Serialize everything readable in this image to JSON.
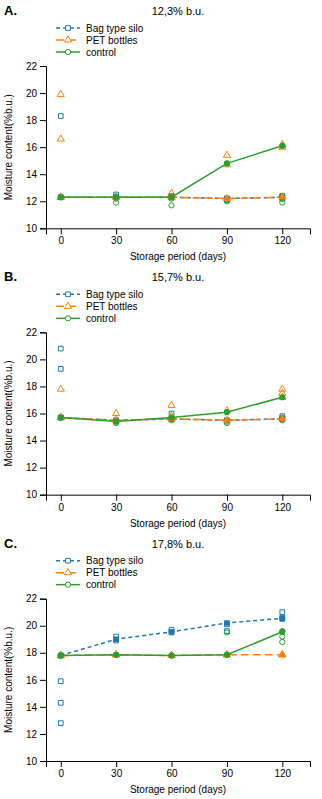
{
  "chart_data": [
    {
      "type": "line",
      "title": "12,3% b.u.",
      "annotations": [
        "A."
      ],
      "xlabel": "Storage period (days)",
      "ylabel": "Moisture content(%b.u.)",
      "x": [
        0,
        30,
        60,
        90,
        120
      ],
      "xlim": [
        -8,
        135
      ],
      "xticks": [
        0,
        30,
        60,
        90,
        120
      ],
      "ylim": [
        10,
        22
      ],
      "yticks": [
        10,
        12,
        14,
        16,
        18,
        20,
        22
      ],
      "grid": false,
      "legend": "top",
      "series": [
        {
          "name": "Bag type silo",
          "marker": "square",
          "line_style": "dashed",
          "values": [
            12.3,
            12.3,
            12.3,
            12.2,
            12.3
          ],
          "replicate_x": [
            0,
            0,
            30,
            30,
            60,
            60,
            90,
            90,
            120,
            120
          ],
          "replicate_values": [
            12.3,
            18.3,
            12.3,
            12.5,
            12.3,
            12.4,
            12.1,
            12.2,
            12.2,
            12.4
          ]
        },
        {
          "name": "PET bottles",
          "marker": "triangle",
          "line_style": "longdash",
          "values": [
            12.3,
            12.3,
            12.3,
            12.2,
            12.3
          ],
          "replicate_x": [
            0,
            0,
            0,
            30,
            60,
            60,
            90,
            90,
            120,
            120,
            120
          ],
          "replicate_values": [
            12.3,
            19.9,
            16.6,
            12.3,
            12.3,
            12.6,
            14.7,
            15.4,
            16.0,
            16.2,
            16.1
          ]
        },
        {
          "name": "control",
          "marker": "circle",
          "line_style": "solid",
          "values": [
            12.3,
            12.3,
            12.3,
            14.8,
            16.1
          ],
          "replicate_x": [
            0,
            30,
            30,
            60,
            60,
            90,
            90,
            120,
            120,
            120
          ],
          "replicate_values": [
            12.3,
            12.2,
            11.9,
            12.2,
            11.7,
            12.0,
            12.1,
            12.2,
            11.9,
            12.4
          ]
        }
      ]
    },
    {
      "type": "line",
      "title": "15,7% b.u.",
      "annotations": [
        "B."
      ],
      "xlabel": "Storage period (days)",
      "ylabel": "Moisture content(%b.u.)",
      "x": [
        0,
        30,
        60,
        90,
        120
      ],
      "xlim": [
        -8,
        135
      ],
      "xticks": [
        0,
        30,
        60,
        90,
        120
      ],
      "ylim": [
        10,
        22
      ],
      "yticks": [
        10,
        12,
        14,
        16,
        18,
        20,
        22
      ],
      "grid": false,
      "legend": "top",
      "series": [
        {
          "name": "Bag type silo",
          "marker": "square",
          "line_style": "dashed",
          "values": [
            15.7,
            15.5,
            15.6,
            15.5,
            15.6
          ],
          "replicate_x": [
            0,
            0,
            0,
            30,
            60,
            60,
            90,
            120,
            120
          ],
          "replicate_values": [
            15.7,
            20.8,
            19.3,
            15.4,
            15.6,
            16.0,
            15.4,
            15.6,
            15.8
          ]
        },
        {
          "name": "PET bottles",
          "marker": "triangle",
          "line_style": "longdash",
          "values": [
            15.7,
            15.5,
            15.6,
            15.5,
            15.6
          ],
          "replicate_x": [
            0,
            0,
            30,
            60,
            60,
            90,
            120,
            120,
            120
          ],
          "replicate_values": [
            15.7,
            17.8,
            16.0,
            16.6,
            15.8,
            16.2,
            17.2,
            17.5,
            17.8
          ]
        },
        {
          "name": "control",
          "marker": "circle",
          "line_style": "solid",
          "values": [
            15.7,
            15.4,
            15.7,
            16.1,
            17.2
          ],
          "replicate_x": [
            0,
            30,
            30,
            60,
            60,
            90,
            90,
            120,
            120
          ],
          "replicate_values": [
            15.7,
            15.3,
            15.5,
            15.5,
            15.6,
            15.3,
            15.5,
            15.5,
            15.7
          ]
        }
      ]
    },
    {
      "type": "line",
      "title": "17,8% b.u.",
      "annotations": [
        "C."
      ],
      "xlabel": "Storage period (days)",
      "ylabel": "Moisture content(%b.u.)",
      "x": [
        0,
        30,
        60,
        90,
        120
      ],
      "xlim": [
        -8,
        135
      ],
      "xticks": [
        0,
        30,
        60,
        90,
        120
      ],
      "ylim": [
        10,
        22
      ],
      "yticks": [
        10,
        12,
        14,
        16,
        18,
        20,
        22
      ],
      "grid": false,
      "legend": "top",
      "series": [
        {
          "name": "Bag type silo",
          "marker": "square",
          "line_style": "dashed",
          "values": [
            17.8,
            19.0,
            19.55,
            20.2,
            20.55
          ],
          "replicate_x": [
            0,
            0,
            0,
            0,
            30,
            30,
            60,
            60,
            90,
            90,
            120,
            120,
            120
          ],
          "replicate_values": [
            17.8,
            12.8,
            14.3,
            15.9,
            18.9,
            19.2,
            19.5,
            19.7,
            20.1,
            19.6,
            20.5,
            20.6,
            21.0
          ]
        },
        {
          "name": "PET bottles",
          "marker": "triangle",
          "line_style": "longdash",
          "values": [
            17.8,
            17.85,
            17.8,
            17.85,
            17.85
          ],
          "replicate_x": [
            0,
            30,
            60,
            90,
            120
          ],
          "replicate_values": [
            17.8,
            17.85,
            17.8,
            17.85,
            17.85
          ]
        },
        {
          "name": "control",
          "marker": "circle",
          "line_style": "solid",
          "values": [
            17.8,
            17.85,
            17.8,
            17.85,
            19.55
          ],
          "replicate_x": [
            0,
            30,
            60,
            90,
            90,
            120,
            120,
            120
          ],
          "replicate_values": [
            17.8,
            17.85,
            17.8,
            17.85,
            19.5,
            19.6,
            18.8,
            19.2
          ]
        }
      ]
    }
  ]
}
